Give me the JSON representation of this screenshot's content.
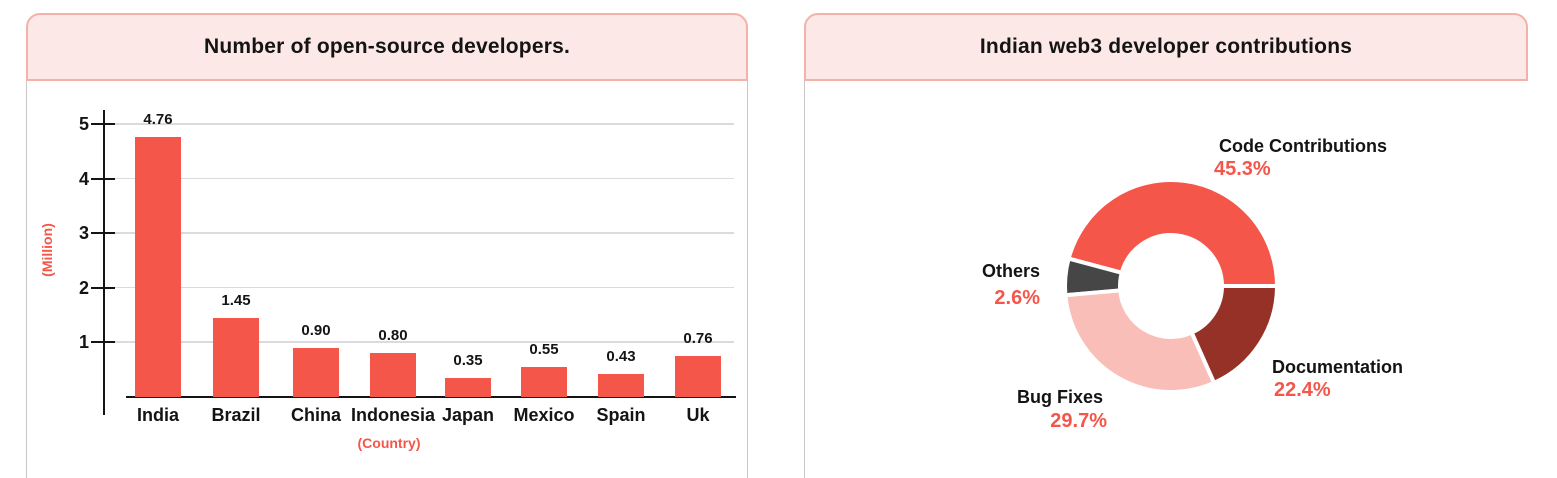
{
  "colors": {
    "accent": "#f4564a",
    "header_bg": "#fce9e7",
    "header_border": "#f3b1aa",
    "card_border": "#cbc7c6",
    "gridline": "#dbdbdb",
    "axis": "#141414",
    "text": "#141414"
  },
  "chart_data": [
    {
      "type": "bar",
      "title": "Number of open-source developers.",
      "categories": [
        "India",
        "Brazil",
        "China",
        "Indonesia",
        "Japan",
        "Mexico",
        "Spain",
        "Uk"
      ],
      "values": [
        4.76,
        1.45,
        0.9,
        0.8,
        0.35,
        0.55,
        0.43,
        0.76
      ],
      "value_labels": [
        "4.76",
        "1.45",
        "0.90",
        "0.80",
        "0.35",
        "0.55",
        "0.43",
        "0.76"
      ],
      "xlabel": "(Country)",
      "ylabel": "(Million)",
      "yticks": [
        1,
        2,
        3,
        4,
        5
      ],
      "ylim": [
        0,
        5.5
      ],
      "grid": true,
      "bar_color": "#f4564a"
    },
    {
      "type": "pie",
      "donut": true,
      "title": "Indian web3 developer contributions",
      "slices": [
        {
          "label": "Code Contributions",
          "value": 45.3,
          "pct_label": "45.3%",
          "color": "#f4564a",
          "start": 0,
          "end": 165
        },
        {
          "label": "Others",
          "value": 2.6,
          "pct_label": "2.6%",
          "color": "#464646",
          "start": 165,
          "end": 185
        },
        {
          "label": "Bug Fixes",
          "value": 29.7,
          "pct_label": "29.7%",
          "color": "#f9beb8",
          "start": 185,
          "end": 294
        },
        {
          "label": "Documentation",
          "value": 22.4,
          "pct_label": "22.4%",
          "color": "#953127",
          "start": 294,
          "end": 360
        }
      ],
      "pct_color": "#f4564a",
      "legend_position": "labels-around"
    }
  ]
}
